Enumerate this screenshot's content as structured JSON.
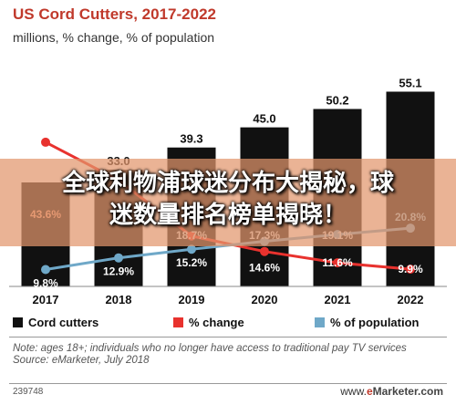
{
  "header": {
    "title": "US Cord Cutters, 2017-2022",
    "subtitle": "millions, % change, % of population"
  },
  "banner": {
    "line1": "全球利物浦球迷分布大揭秘，球",
    "line2": "迷数量排名榜单揭晓！"
  },
  "legend": {
    "cord_cutters": "Cord cutters",
    "pct_change": "% change",
    "pct_population": "% of population"
  },
  "colors": {
    "bars": "#111111",
    "pct_change": "#e8322e",
    "pct_population": "#6fa8c8",
    "title": "#c0392b",
    "banner": "#e2966c"
  },
  "note": {
    "line1": "Note: ages 18+; individuals who no longer have access to traditional pay TV services",
    "line2": "Source: eMarketer, July 2018"
  },
  "footer": {
    "id": "239748",
    "logo_prefix": "www.",
    "logo_e": "e",
    "logo_suffix": "Marketer.com"
  },
  "chart_data": {
    "type": "bar",
    "title": "US Cord Cutters, 2017-2022",
    "subtitle": "millions, % change, % of population",
    "categories": [
      "2017",
      "2018",
      "2019",
      "2020",
      "2021",
      "2022"
    ],
    "ylim": [
      0,
      60
    ],
    "series": [
      {
        "name": "Cord cutters",
        "type": "bar",
        "values": [
          null,
          33.0,
          39.3,
          45.0,
          50.2,
          55.1
        ],
        "labels": [
          "",
          "33.0",
          "39.3",
          "45.0",
          "50.2",
          "55.1"
        ]
      },
      {
        "name": "% change",
        "type": "line",
        "values": [
          43.6,
          33.5,
          18.7,
          14.6,
          11.6,
          9.9
        ],
        "labels": [
          "43.6%",
          "",
          "",
          "14.6%",
          "11.6%",
          "9.9%"
        ]
      },
      {
        "name": "% of population",
        "type": "line",
        "values": [
          9.8,
          12.9,
          15.2,
          17.3,
          19.1,
          20.8
        ],
        "labels": [
          "9.8%",
          "12.9%",
          "15.2%",
          "",
          "",
          "20.8%"
        ]
      }
    ],
    "visible_partial_labels": [
      "43.6%",
      "18.7%",
      "17.3%",
      "19.1%",
      "20.8%"
    ]
  }
}
